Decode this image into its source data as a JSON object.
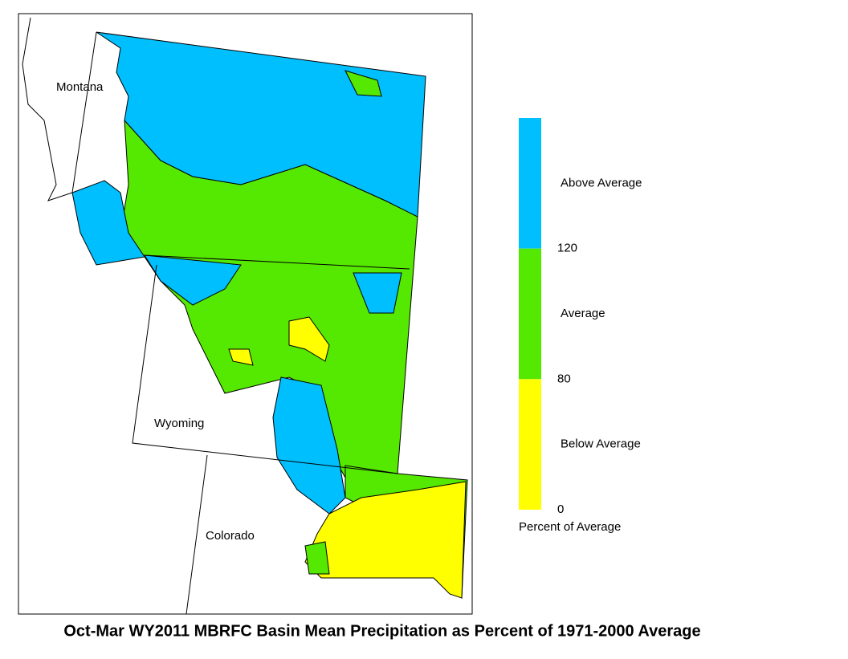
{
  "title": "Oct-Mar WY2011 MBRFC Basin Mean Precipitation as Percent of 1971-2000 Average",
  "states": [
    {
      "name": "Montana"
    },
    {
      "name": "Wyoming"
    },
    {
      "name": "Colorado"
    }
  ],
  "legend": {
    "title": "Percent of Average",
    "classes": [
      {
        "label": "Above Average",
        "color": "#00bfff",
        "min": 120
      },
      {
        "label": "Average",
        "color": "#55e800",
        "min": 80
      },
      {
        "label": "Below Average",
        "color": "#ffff00",
        "min": 0
      }
    ]
  }
}
